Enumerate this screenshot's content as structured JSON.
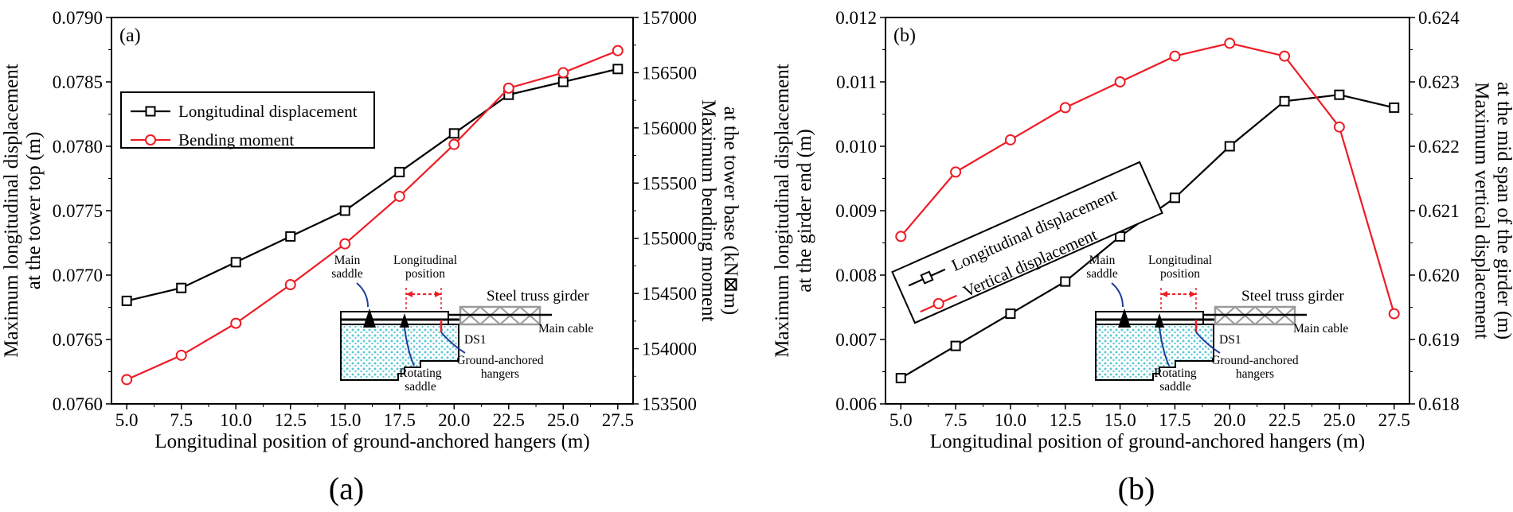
{
  "figure": {
    "captions": [
      "(a)",
      "(b)"
    ]
  },
  "chart_data": [
    {
      "type": "line",
      "panel_label": "(a)",
      "x": [
        5.0,
        7.5,
        10.0,
        12.5,
        15.0,
        17.5,
        20.0,
        22.5,
        25.0,
        27.5
      ],
      "xlabel": "Longitudinal position of ground-anchored hangers (m)",
      "xlim": [
        4.3,
        28.2
      ],
      "xticks": [
        "5.0",
        "7.5",
        "10.0",
        "12.5",
        "15.0",
        "17.5",
        "20.0",
        "22.5",
        "25.0",
        "27.5"
      ],
      "ylabel_left": [
        "Maximum longitudinal displacement",
        "at the tower top (m)"
      ],
      "ylim_left": [
        0.076,
        0.079
      ],
      "yticks_left": [
        "0.0760",
        "0.0765",
        "0.0770",
        "0.0775",
        "0.0780",
        "0.0785",
        "0.0790"
      ],
      "ylabel_right": [
        "Maximum bending moment",
        "at the tower base (kN⊠m)"
      ],
      "ylim_right": [
        153500,
        157000
      ],
      "yticks_right": [
        "153500",
        "154000",
        "154500",
        "155000",
        "155500",
        "156000",
        "156500",
        "157000"
      ],
      "legend_position": "upper-left",
      "series": [
        {
          "name": "Longitudinal displacement",
          "axis": "left",
          "marker": "square",
          "color": "#000000",
          "values": [
            0.0768,
            0.0769,
            0.0771,
            0.0773,
            0.0775,
            0.0778,
            0.0781,
            0.0784,
            0.0785,
            0.0786
          ]
        },
        {
          "name": "Bending moment",
          "axis": "right",
          "marker": "circle",
          "color": "#ee1c25",
          "values": [
            153720,
            153940,
            154230,
            154580,
            154950,
            155380,
            155850,
            156360,
            156500,
            156700
          ]
        }
      ],
      "inset": {
        "main_saddle": "Main\nsaddle",
        "longitudinal_position": "Longitudinal\nposition",
        "steel_truss_girder": "Steel truss girder",
        "main_cable": "Main cable",
        "ds1": "DS1",
        "rotating_saddle": "Rotating\nsaddle",
        "ground_anchored_hangers": "Ground-anchored\nhangers"
      }
    },
    {
      "type": "line",
      "panel_label": "(b)",
      "x": [
        5.0,
        7.5,
        10.0,
        12.5,
        15.0,
        17.5,
        20.0,
        22.5,
        25.0,
        27.5
      ],
      "xlabel": "Longitudinal position of ground-anchored hangers (m)",
      "xlim": [
        4.3,
        28.2
      ],
      "xticks": [
        "5.0",
        "7.5",
        "10.0",
        "12.5",
        "15.0",
        "17.5",
        "20.0",
        "22.5",
        "25.0",
        "27.5"
      ],
      "ylabel_left": [
        "Maximum longitudinal displacement",
        "at the girder end (m)"
      ],
      "ylim_left": [
        0.006,
        0.012
      ],
      "yticks_left": [
        "0.006",
        "0.007",
        "0.008",
        "0.009",
        "0.010",
        "0.011",
        "0.012"
      ],
      "ylabel_right": [
        "Maximum vertical displacement",
        "at the mid span of the girder (m)"
      ],
      "ylim_right": [
        0.618,
        0.624
      ],
      "yticks_right": [
        "0.618",
        "0.619",
        "0.620",
        "0.621",
        "0.622",
        "0.623",
        "0.624"
      ],
      "legend_position": "center-left, rotated",
      "series": [
        {
          "name": "Longitudinal displacement",
          "axis": "left",
          "marker": "square",
          "color": "#000000",
          "values": [
            0.0064,
            0.0069,
            0.0074,
            0.0079,
            0.0086,
            0.0092,
            0.01,
            0.0107,
            0.0108,
            0.0106
          ]
        },
        {
          "name": "Vertical displacement",
          "axis": "right",
          "marker": "circle",
          "color": "#ee1c25",
          "values": [
            0.6206,
            0.6216,
            0.6221,
            0.6226,
            0.623,
            0.6234,
            0.6236,
            0.6234,
            0.6223,
            0.6194
          ]
        }
      ],
      "inset": {
        "main_saddle": "Main\nsaddle",
        "longitudinal_position": "Longitudinal\nposition",
        "steel_truss_girder": "Steel truss girder",
        "main_cable": "Main cable",
        "ds1": "DS1",
        "rotating_saddle": "Rotating\nsaddle",
        "ground_anchored_hangers": "Ground-anchored\nhangers"
      }
    }
  ]
}
